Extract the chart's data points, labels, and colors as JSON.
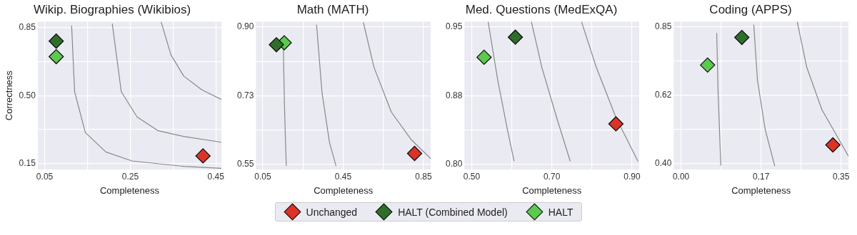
{
  "chart_data": [
    {
      "type": "scatter",
      "title": "Wikip. Biographies (Wikibios)",
      "xlabel": "Completeness",
      "ylabel": "Correctness",
      "xlim": [
        0.034,
        0.463
      ],
      "ylim": [
        0.12,
        0.88
      ],
      "xticks": [
        0.05,
        {
          "value": 0.15,
          "label": null
        },
        0.25,
        {
          "value": 0.35,
          "label": null
        },
        0.45
      ],
      "yticks": [
        0.15,
        {
          "value": 0.325,
          "label": null
        },
        {
          "value": 0.5,
          "label": "0.50"
        },
        {
          "value": 0.675,
          "label": null
        },
        0.85
      ],
      "grid": true,
      "legend": "bottom",
      "marker": "diamond",
      "series": [
        {
          "type": "line",
          "color": "#888888",
          "marker": "none",
          "x": [
            0.113,
            0.12,
            0.145,
            0.193,
            0.254,
            0.375,
            0.463
          ],
          "values": [
            0.86,
            0.52,
            0.31,
            0.21,
            0.164,
            0.136,
            0.126
          ]
        },
        {
          "type": "line",
          "color": "#888888",
          "marker": "none",
          "x": [
            0.208,
            0.229,
            0.266,
            0.314,
            0.375,
            0.463
          ],
          "values": [
            0.87,
            0.52,
            0.39,
            0.32,
            0.29,
            0.26
          ]
        },
        {
          "type": "line",
          "color": "#888888",
          "marker": "none",
          "x": [
            0.322,
            0.345,
            0.375,
            0.417,
            0.463
          ],
          "values": [
            0.88,
            0.71,
            0.6,
            0.53,
            0.48
          ]
        },
        {
          "name": "Unchanged",
          "color": "#dc3327",
          "x": [
            0.42
          ],
          "values": [
            0.19
          ]
        },
        {
          "name": "HALT (Combined Model)",
          "color": "#2f6e2a",
          "x": [
            0.077
          ],
          "values": [
            0.78
          ]
        },
        {
          "name": "HALT",
          "color": "#5cc94f",
          "x": [
            0.077
          ],
          "values": [
            0.7
          ]
        }
      ]
    },
    {
      "type": "scatter",
      "title": "Math (MATH)",
      "xlabel": "Completeness",
      "xlim": [
        0.016,
        0.886
      ],
      "ylim": [
        0.536,
        0.914
      ],
      "xticks": [
        0.05,
        {
          "value": 0.25,
          "label": null
        },
        0.45,
        {
          "value": 0.65,
          "label": null
        },
        0.85
      ],
      "yticks": [
        0.55,
        {
          "value": 0.6375,
          "label": null
        },
        {
          "value": 0.725,
          "label": "0.73"
        },
        {
          "value": 0.8125,
          "label": null
        },
        {
          "value": 0.9,
          "label": "0.90"
        }
      ],
      "grid": true,
      "marker": "diamond",
      "series": [
        {
          "type": "line",
          "color": "#888888",
          "marker": "none",
          "x": [
            0.152,
            0.158,
            0.167
          ],
          "values": [
            0.866,
            0.7,
            0.545
          ]
        },
        {
          "type": "line",
          "color": "#888888",
          "marker": "none",
          "x": [
            0.318,
            0.345,
            0.382,
            0.415
          ],
          "values": [
            0.906,
            0.733,
            0.606,
            0.545
          ]
        },
        {
          "type": "line",
          "color": "#888888",
          "marker": "none",
          "x": [
            0.551,
            0.604,
            0.69,
            0.788,
            0.886
          ],
          "values": [
            0.912,
            0.797,
            0.683,
            0.613,
            0.564
          ]
        },
        {
          "color": "#dc3327",
          "x": [
            0.806
          ],
          "values": [
            0.577
          ]
        },
        {
          "color": "#2f6e2a",
          "x": [
            0.118
          ],
          "values": [
            0.855
          ]
        },
        {
          "color": "#5cc94f",
          "x": [
            0.157
          ],
          "values": [
            0.86
          ]
        }
      ]
    },
    {
      "type": "scatter",
      "title": "Med. Questions (MedExQA)",
      "xlabel": "Completeness",
      "xlim": [
        0.482,
        0.918
      ],
      "ylim": [
        0.794,
        0.956
      ],
      "xticks": [
        {
          "value": 0.5,
          "label": "0.50"
        },
        {
          "value": 0.6,
          "label": null
        },
        {
          "value": 0.7,
          "label": "0.70"
        },
        {
          "value": 0.8,
          "label": null
        },
        {
          "value": 0.9,
          "label": "0.90"
        }
      ],
      "yticks": [
        {
          "value": 0.8,
          "label": "0.80"
        },
        {
          "value": 0.8375,
          "label": null
        },
        {
          "value": 0.875,
          "label": "0.88"
        },
        {
          "value": 0.9125,
          "label": null
        },
        0.95
      ],
      "grid": true,
      "marker": "diamond",
      "series": [
        {
          "type": "line",
          "color": "#888888",
          "marker": "none",
          "x": [
            0.541,
            0.565,
            0.589,
            0.606
          ],
          "values": [
            0.956,
            0.892,
            0.838,
            0.803
          ]
        },
        {
          "type": "line",
          "color": "#888888",
          "marker": "none",
          "x": [
            0.649,
            0.675,
            0.712,
            0.746
          ],
          "values": [
            0.956,
            0.906,
            0.851,
            0.803
          ]
        },
        {
          "type": "line",
          "color": "#888888",
          "marker": "none",
          "x": [
            0.774,
            0.811,
            0.86,
            0.915
          ],
          "values": [
            0.956,
            0.906,
            0.851,
            0.803
          ]
        },
        {
          "color": "#dc3327",
          "x": [
            0.86
          ],
          "values": [
            0.844
          ]
        },
        {
          "color": "#2f6e2a",
          "x": [
            0.609
          ],
          "values": [
            0.939
          ]
        },
        {
          "color": "#5cc94f",
          "x": [
            0.531
          ],
          "values": [
            0.917
          ]
        }
      ]
    },
    {
      "type": "scatter",
      "title": "Coding (APPS)",
      "xlabel": "Completeness",
      "xlim": [
        -0.016,
        0.366
      ],
      "ylim": [
        0.381,
        0.868
      ],
      "xticks": [
        {
          "value": 0,
          "label": "0.00"
        },
        {
          "value": 0.0875,
          "label": null
        },
        {
          "value": 0.175,
          "label": "0.17"
        },
        {
          "value": 0.2625,
          "label": null
        },
        0.35
      ],
      "yticks": [
        {
          "value": 0.4,
          "label": "0.40"
        },
        {
          "value": 0.5125,
          "label": null
        },
        {
          "value": 0.625,
          "label": "0.62"
        },
        {
          "value": 0.7375,
          "label": null
        },
        0.85
      ],
      "grid": true,
      "marker": "diamond",
      "series": [
        {
          "type": "line",
          "color": "#888888",
          "marker": "none",
          "x": [
            0.078,
            0.081,
            0.087
          ],
          "values": [
            0.831,
            0.635,
            0.394
          ]
        },
        {
          "type": "line",
          "color": "#888888",
          "marker": "none",
          "x": [
            0.159,
            0.167,
            0.184,
            0.205
          ],
          "values": [
            0.858,
            0.676,
            0.513,
            0.392
          ]
        },
        {
          "type": "line",
          "color": "#888888",
          "marker": "none",
          "x": [
            0.254,
            0.275,
            0.308,
            0.366
          ],
          "values": [
            0.868,
            0.717,
            0.578,
            0.425
          ]
        },
        {
          "color": "#dc3327",
          "x": [
            0.332
          ],
          "values": [
            0.462
          ]
        },
        {
          "color": "#2f6e2a",
          "x": [
            0.133
          ],
          "values": [
            0.816
          ]
        },
        {
          "color": "#5cc94f",
          "x": [
            0.058
          ],
          "values": [
            0.725
          ]
        }
      ]
    }
  ]
}
